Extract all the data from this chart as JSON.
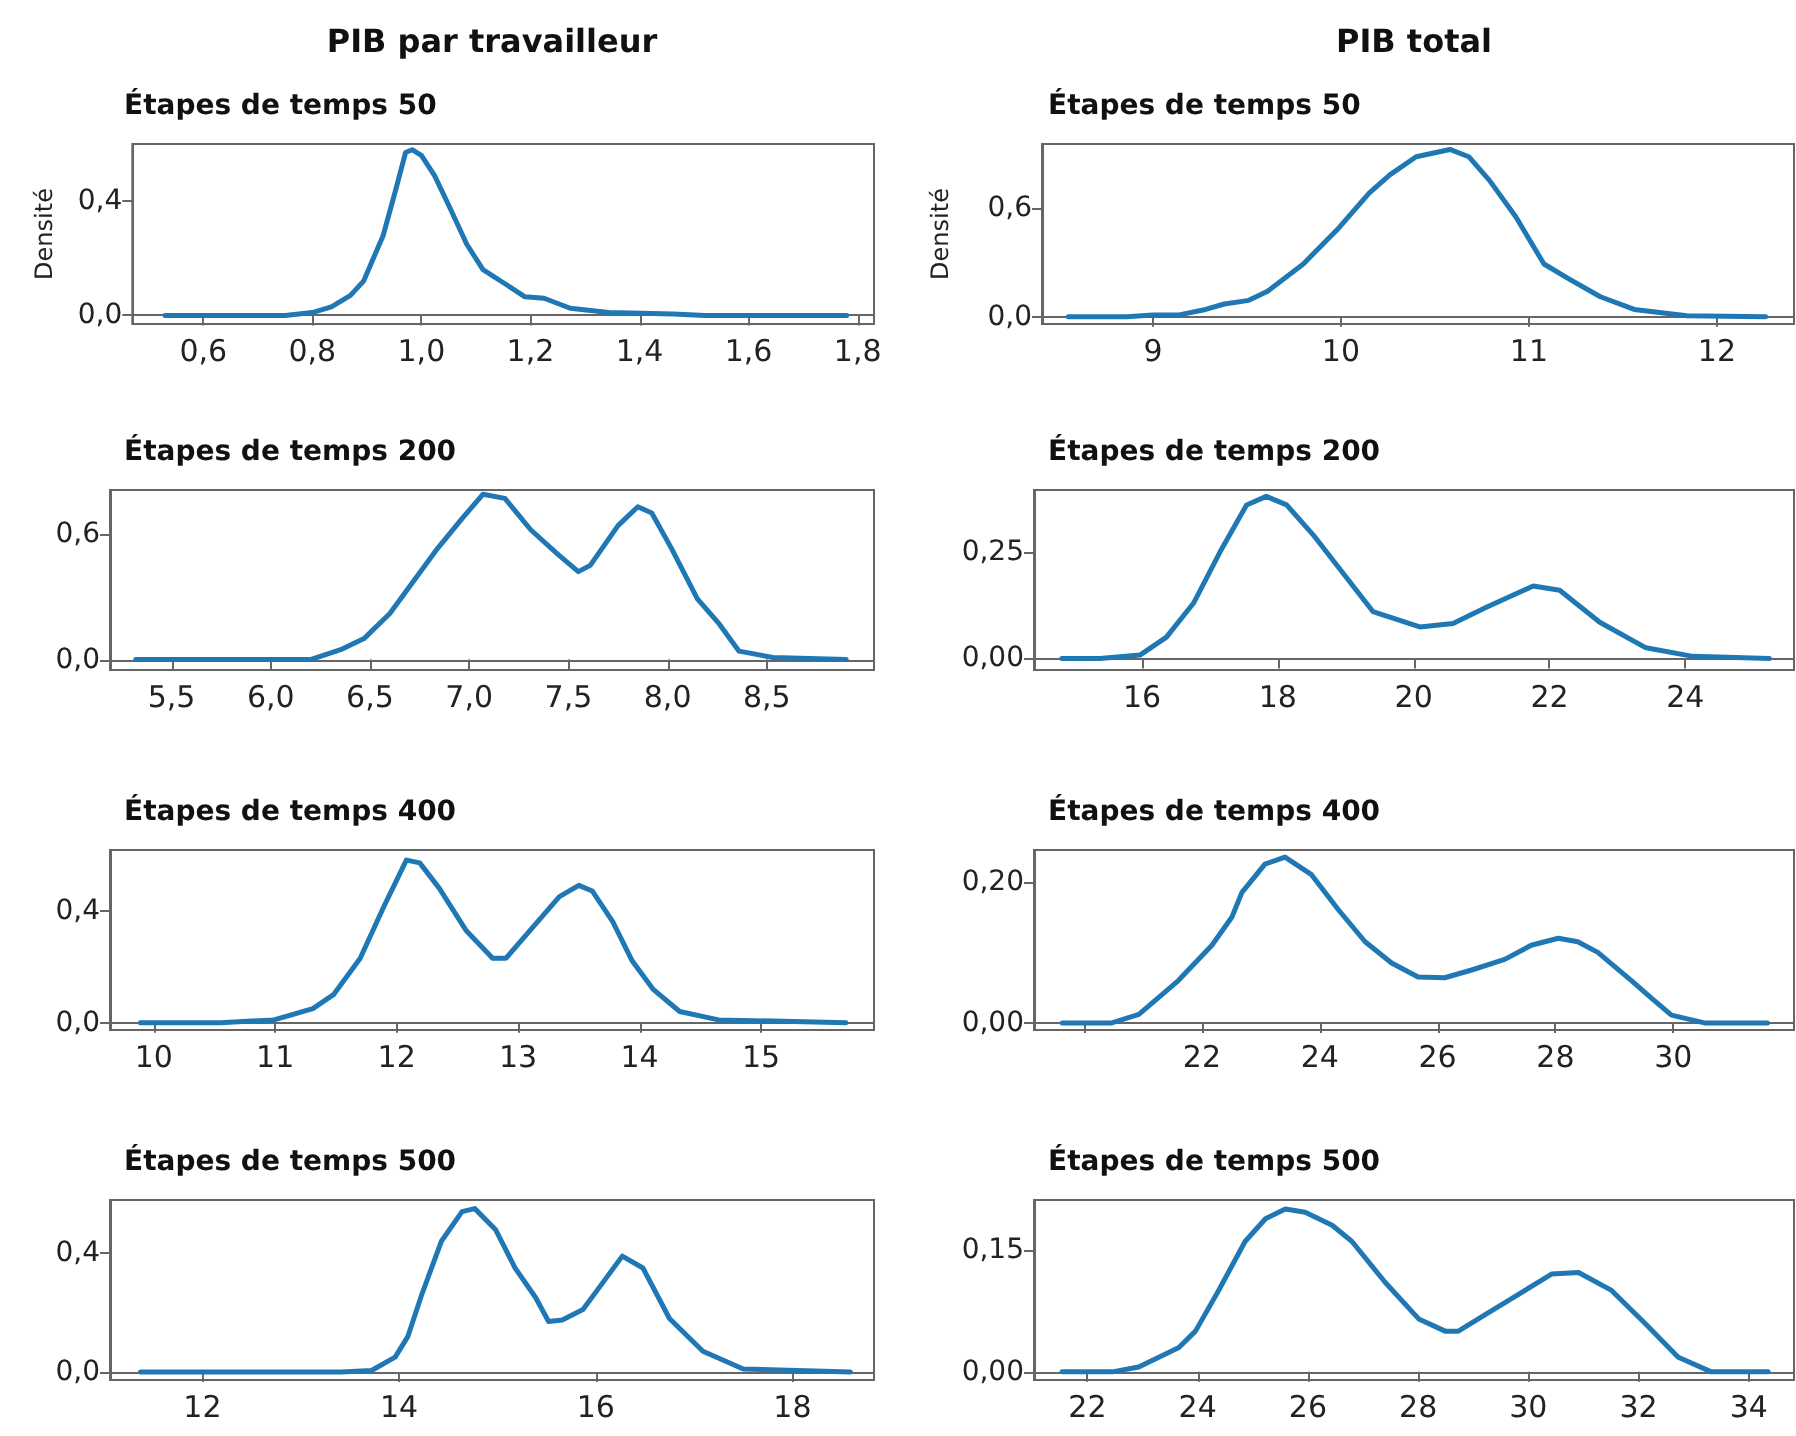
{
  "chart_data": [
    {
      "type": "line",
      "title": "Étapes de temps 50",
      "annotations": [
        "PIB par travailleur"
      ],
      "ylabel": "Densité",
      "marker": "none",
      "xlim": [
        0.47,
        1.83
      ],
      "ylim": [
        -0.03,
        0.6
      ],
      "xticks": [
        {
          "value": 0.6,
          "label": "0,6"
        },
        {
          "value": 0.8,
          "label": "0,8"
        },
        {
          "value": 1.0,
          "label": "1,0"
        },
        {
          "value": 1.2,
          "label": "1,2"
        },
        {
          "value": 1.4,
          "label": "1,4"
        },
        {
          "value": 1.6,
          "label": "1,6"
        },
        {
          "value": 1.8,
          "label": "1,8"
        }
      ],
      "yticks": [
        {
          "value": 0,
          "label": "0,0"
        },
        {
          "value": 0.4,
          "label": "0,4"
        }
      ],
      "series": [
        {
          "color": "#1f77b4",
          "x": [
            0.53,
            0.75,
            0.8,
            0.835,
            0.87,
            0.894,
            0.93,
            0.953,
            0.971,
            0.983,
            1.0,
            1.024,
            1.054,
            1.083,
            1.113,
            1.154,
            1.19,
            1.225,
            1.273,
            1.344,
            1.462,
            1.52,
            1.78
          ],
          "values": [
            0,
            0,
            0.01,
            0.03,
            0.07,
            0.12,
            0.28,
            0.44,
            0.57,
            0.58,
            0.56,
            0.49,
            0.37,
            0.25,
            0.16,
            0.11,
            0.065,
            0.06,
            0.025,
            0.01,
            0.005,
            0,
            0
          ]
        }
      ]
    },
    {
      "type": "line",
      "title": "Étapes de temps 50",
      "annotations": [
        "PIB total"
      ],
      "ylabel": "Densité",
      "marker": "none",
      "xlim": [
        8.41,
        12.41
      ],
      "ylim": [
        -0.04,
        0.95
      ],
      "xticks": [
        9,
        10,
        11,
        12
      ],
      "yticks": [
        {
          "value": 0,
          "label": "0,0"
        },
        {
          "value": 0.6,
          "label": "0,6"
        }
      ],
      "series": [
        {
          "color": "#1f77b4",
          "x": [
            8.55,
            8.86,
            9.0,
            9.14,
            9.28,
            9.38,
            9.51,
            9.61,
            9.8,
            9.99,
            10.15,
            10.26,
            10.4,
            10.58,
            10.68,
            10.79,
            10.93,
            11.08,
            11.21,
            11.38,
            11.56,
            11.84,
            12.26
          ],
          "values": [
            0,
            0,
            0.01,
            0.01,
            0.04,
            0.07,
            0.09,
            0.14,
            0.29,
            0.49,
            0.68,
            0.78,
            0.88,
            0.92,
            0.88,
            0.75,
            0.55,
            0.29,
            0.21,
            0.11,
            0.04,
            0.005,
            0
          ]
        }
      ]
    },
    {
      "type": "line",
      "title": "Étapes de temps 200",
      "marker": "none",
      "xlim": [
        5.19,
        9.04
      ],
      "ylim": [
        -0.05,
        0.81
      ],
      "xticks": [
        {
          "value": 5.5,
          "label": "5,5"
        },
        {
          "value": 6.0,
          "label": "6,0"
        },
        {
          "value": 6.5,
          "label": "6,5"
        },
        {
          "value": 7.0,
          "label": "7,0"
        },
        {
          "value": 7.5,
          "label": "7,5"
        },
        {
          "value": 8.0,
          "label": "8,0"
        },
        {
          "value": 8.5,
          "label": "8,5"
        }
      ],
      "yticks": [
        {
          "value": 0,
          "label": "0,0"
        },
        {
          "value": 0.6,
          "label": "0,6"
        }
      ],
      "series": [
        {
          "color": "#1f77b4",
          "x": [
            5.32,
            6.2,
            6.36,
            6.47,
            6.6,
            6.77,
            6.84,
            6.97,
            7.07,
            7.18,
            7.31,
            7.45,
            7.55,
            7.61,
            7.75,
            7.85,
            7.92,
            8.02,
            8.15,
            8.26,
            8.36,
            8.53,
            8.9
          ],
          "values": [
            0,
            0,
            0.05,
            0.1,
            0.22,
            0.44,
            0.53,
            0.68,
            0.79,
            0.77,
            0.62,
            0.5,
            0.42,
            0.45,
            0.64,
            0.73,
            0.7,
            0.53,
            0.29,
            0.17,
            0.04,
            0.01,
            0
          ]
        }
      ]
    },
    {
      "type": "line",
      "title": "Étapes de temps 200",
      "marker": "none",
      "xlim": [
        14.41,
        25.6
      ],
      "ylim": [
        -0.027,
        0.395
      ],
      "xticks": [
        16,
        18,
        20,
        22,
        24
      ],
      "yticks": [
        {
          "value": 0,
          "label": "0,00"
        },
        {
          "value": 0.25,
          "label": "0,25"
        }
      ],
      "series": [
        {
          "color": "#1f77b4",
          "x": [
            14.82,
            15.38,
            15.97,
            16.36,
            16.76,
            17.15,
            17.54,
            17.83,
            18.13,
            18.52,
            19.01,
            19.4,
            20.09,
            20.58,
            21.07,
            21.76,
            22.15,
            22.74,
            23.42,
            24.11,
            25.24
          ],
          "values": [
            0,
            0,
            0.008,
            0.05,
            0.13,
            0.25,
            0.36,
            0.38,
            0.36,
            0.29,
            0.19,
            0.11,
            0.074,
            0.082,
            0.12,
            0.17,
            0.16,
            0.085,
            0.025,
            0.005,
            0
          ]
        }
      ]
    },
    {
      "type": "line",
      "title": "Étapes de temps 400",
      "marker": "none",
      "xlim": [
        9.64,
        15.93
      ],
      "ylim": [
        -0.026,
        0.616
      ],
      "xticks": [
        10,
        11,
        12,
        13,
        14,
        15
      ],
      "yticks": [
        {
          "value": 0,
          "label": "0,0"
        },
        {
          "value": 0.4,
          "label": "0,4"
        }
      ],
      "series": [
        {
          "color": "#1f77b4",
          "x": [
            9.89,
            10.55,
            10.99,
            11.31,
            11.48,
            11.7,
            11.89,
            12.08,
            12.19,
            12.35,
            12.57,
            12.79,
            12.9,
            13.12,
            13.34,
            13.5,
            13.61,
            13.78,
            13.94,
            14.11,
            14.33,
            14.65,
            15.7
          ],
          "values": [
            0,
            0,
            0.01,
            0.05,
            0.1,
            0.23,
            0.41,
            0.58,
            0.57,
            0.48,
            0.33,
            0.23,
            0.23,
            0.34,
            0.45,
            0.49,
            0.47,
            0.36,
            0.22,
            0.12,
            0.04,
            0.01,
            0
          ]
        }
      ]
    },
    {
      "type": "line",
      "title": "Étapes de temps 400",
      "marker": "none",
      "xlim": [
        19.15,
        32.05
      ],
      "ylim": [
        -0.01,
        0.245
      ],
      "xticks": [
        {
          "value": 20,
          "label": null
        },
        22,
        24,
        26,
        28,
        30
      ],
      "yticks": [
        {
          "value": 0,
          "label": "0,00"
        },
        {
          "value": 0.2,
          "label": "0,20"
        }
      ],
      "series": [
        {
          "color": "#1f77b4",
          "x": [
            19.63,
            20.47,
            20.93,
            21.6,
            22.17,
            22.51,
            22.68,
            23.07,
            23.41,
            23.86,
            24.32,
            24.77,
            25.22,
            25.67,
            26.12,
            26.58,
            27.14,
            27.59,
            28.05,
            28.38,
            28.72,
            29.29,
            29.63,
            29.97,
            30.53,
            31.6
          ],
          "values": [
            0,
            0,
            0.012,
            0.06,
            0.11,
            0.15,
            0.185,
            0.225,
            0.235,
            0.21,
            0.16,
            0.115,
            0.085,
            0.065,
            0.064,
            0.075,
            0.09,
            0.11,
            0.12,
            0.115,
            0.1,
            0.06,
            0.035,
            0.011,
            0,
            0
          ]
        }
      ]
    },
    {
      "type": "line",
      "title": "Étapes de temps 500",
      "marker": "none",
      "xlim": [
        11.06,
        18.83
      ],
      "ylim": [
        -0.027,
        0.579
      ],
      "xticks": [
        12,
        14,
        16,
        18
      ],
      "yticks": [
        {
          "value": 0,
          "label": "0,0"
        },
        {
          "value": 0.4,
          "label": "0,4"
        }
      ],
      "series": [
        {
          "color": "#1f77b4",
          "x": [
            11.37,
            13.41,
            13.72,
            13.96,
            14.09,
            14.23,
            14.43,
            14.64,
            14.77,
            14.98,
            15.18,
            15.39,
            15.52,
            15.66,
            15.87,
            16.07,
            16.27,
            16.48,
            16.75,
            17.09,
            17.5,
            18.59
          ],
          "values": [
            0,
            0,
            0.005,
            0.05,
            0.12,
            0.26,
            0.44,
            0.54,
            0.55,
            0.48,
            0.35,
            0.25,
            0.17,
            0.175,
            0.21,
            0.3,
            0.39,
            0.35,
            0.18,
            0.07,
            0.01,
            0
          ]
        }
      ]
    },
    {
      "type": "line",
      "title": "Étapes de temps 500",
      "marker": "none",
      "xlim": [
        21.03,
        34.82
      ],
      "ylim": [
        -0.01,
        0.211
      ],
      "xticks": [
        22,
        24,
        26,
        28,
        30,
        32,
        34
      ],
      "yticks": [
        {
          "value": 0,
          "label": "0,00"
        },
        {
          "value": 0.15,
          "label": "0,15"
        }
      ],
      "series": [
        {
          "color": "#1f77b4",
          "x": [
            21.54,
            22.45,
            22.93,
            23.66,
            23.96,
            24.38,
            24.86,
            25.23,
            25.59,
            25.95,
            26.44,
            26.8,
            27.4,
            28.01,
            28.49,
            28.73,
            29.21,
            29.94,
            30.42,
            30.91,
            31.51,
            32.11,
            32.72,
            33.32,
            34.35
          ],
          "values": [
            0,
            0,
            0.006,
            0.03,
            0.05,
            0.1,
            0.16,
            0.188,
            0.2,
            0.196,
            0.18,
            0.16,
            0.11,
            0.065,
            0.05,
            0.05,
            0.07,
            0.1,
            0.12,
            0.122,
            0.1,
            0.06,
            0.018,
            0,
            0
          ]
        }
      ]
    }
  ]
}
